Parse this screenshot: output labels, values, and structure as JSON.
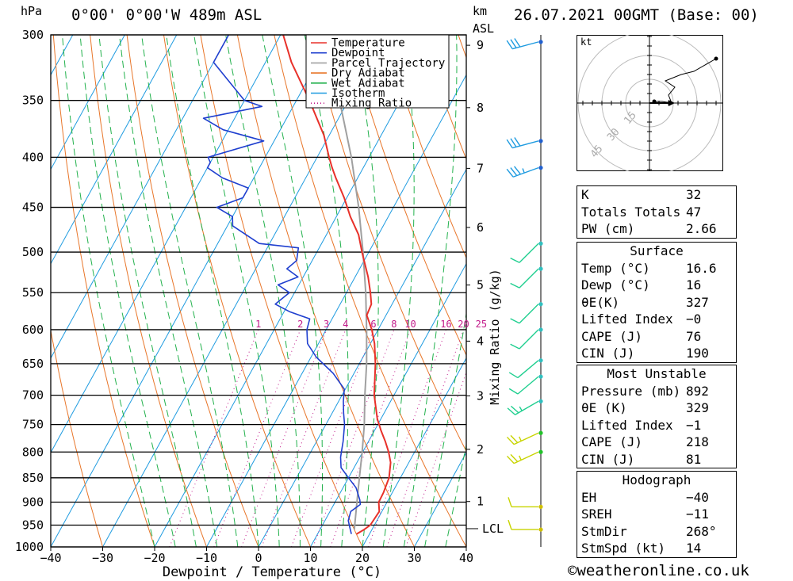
{
  "header": {
    "location": "0°00' 0°00'W 489m ASL",
    "datetime": "26.07.2021 00GMT (Base: 00)",
    "pressure_unit": "hPa",
    "height_unit_km": "km",
    "height_unit_asl": "ASL"
  },
  "chart_data": {
    "type": "skew-t",
    "xlabel": "Dewpoint / Temperature (°C)",
    "ylabel_left": "hPa",
    "ylabel_right": "Mixing Ratio (g/kg)",
    "xlim": [
      -40,
      40
    ],
    "ylim": [
      1000,
      300
    ],
    "pressure_ticks": [
      300,
      350,
      400,
      450,
      500,
      550,
      600,
      650,
      700,
      750,
      800,
      850,
      900,
      950,
      1000
    ],
    "temperature_ticks": [
      -40,
      -30,
      -20,
      -10,
      0,
      10,
      20,
      30,
      40
    ],
    "km_ticks": [
      1,
      2,
      3,
      4,
      5,
      6,
      7,
      8,
      9
    ],
    "lcl_label": "LCL",
    "lcl_pressure": 958,
    "mixing_ratio_labels": [
      1,
      2,
      3,
      4,
      6,
      8,
      10,
      16,
      20,
      25
    ],
    "legend": [
      "Temperature",
      "Dewpoint",
      "Parcel Trajectory",
      "Dry Adiabat",
      "Wet Adiabat",
      "Isotherm",
      "Mixing Ratio"
    ],
    "colors": {
      "temperature": "#e8312a",
      "dewpoint": "#1f3fcf",
      "parcel": "#a0a0a0",
      "dry_adiabat": "#e8762a",
      "wet_adiabat": "#22b14c",
      "isotherm": "#1e9be0",
      "mixing_ratio": "#c21a8a"
    },
    "temperature_profile": [
      [
        970,
        17.5
      ],
      [
        960,
        18.5
      ],
      [
        950,
        19.2
      ],
      [
        920,
        19.5
      ],
      [
        900,
        18.4
      ],
      [
        880,
        18.3
      ],
      [
        850,
        17.8
      ],
      [
        820,
        16.5
      ],
      [
        800,
        15.0
      ],
      [
        780,
        13.2
      ],
      [
        760,
        11.2
      ],
      [
        740,
        9.3
      ],
      [
        700,
        6.2
      ],
      [
        650,
        3.1
      ],
      [
        620,
        0.8
      ],
      [
        600,
        -1.2
      ],
      [
        580,
        -3.7
      ],
      [
        565,
        -4.0
      ],
      [
        550,
        -5.4
      ],
      [
        530,
        -7.5
      ],
      [
        500,
        -11.3
      ],
      [
        480,
        -13.8
      ],
      [
        460,
        -17.3
      ],
      [
        440,
        -20.5
      ],
      [
        420,
        -24.2
      ],
      [
        410,
        -26.0
      ],
      [
        400,
        -27.7
      ],
      [
        380,
        -31.0
      ],
      [
        350,
        -37.5
      ],
      [
        320,
        -45.0
      ],
      [
        300,
        -49.5
      ]
    ],
    "dewpoint_profile": [
      [
        970,
        16.5
      ],
      [
        955,
        15.5
      ],
      [
        940,
        14.5
      ],
      [
        920,
        14.0
      ],
      [
        905,
        15.1
      ],
      [
        895,
        14.5
      ],
      [
        870,
        12.5
      ],
      [
        850,
        10.0
      ],
      [
        830,
        7.5
      ],
      [
        810,
        6.3
      ],
      [
        800,
        5.9
      ],
      [
        780,
        5.1
      ],
      [
        750,
        3.6
      ],
      [
        730,
        2.2
      ],
      [
        710,
        0.9
      ],
      [
        690,
        -0.2
      ],
      [
        665,
        -4.0
      ],
      [
        640,
        -9.0
      ],
      [
        620,
        -12.1
      ],
      [
        600,
        -13.7
      ],
      [
        585,
        -14.3
      ],
      [
        575,
        -19.0
      ],
      [
        565,
        -22.5
      ],
      [
        550,
        -21.0
      ],
      [
        540,
        -24.0
      ],
      [
        530,
        -21.0
      ],
      [
        520,
        -24.0
      ],
      [
        510,
        -23.0
      ],
      [
        495,
        -24.0
      ],
      [
        490,
        -32.0
      ],
      [
        470,
        -39.0
      ],
      [
        460,
        -40.0
      ],
      [
        450,
        -44.0
      ],
      [
        440,
        -40.0
      ],
      [
        430,
        -40.0
      ],
      [
        420,
        -46.0
      ],
      [
        410,
        -50.0
      ],
      [
        405,
        -50.0
      ],
      [
        400,
        -51.0
      ],
      [
        385,
        -42.0
      ],
      [
        375,
        -51.0
      ],
      [
        365,
        -56.0
      ],
      [
        355,
        -46.0
      ],
      [
        350,
        -50.0
      ],
      [
        320,
        -60.0
      ],
      [
        300,
        -60.0
      ]
    ],
    "parcel_profile": [
      [
        960,
        16.6
      ],
      [
        900,
        14.2
      ],
      [
        850,
        12.1
      ],
      [
        800,
        9.9
      ],
      [
        750,
        7.4
      ],
      [
        700,
        4.4
      ],
      [
        650,
        1.4
      ],
      [
        600,
        -2.2
      ],
      [
        550,
        -6.3
      ],
      [
        500,
        -11.1
      ],
      [
        450,
        -16.7
      ],
      [
        400,
        -23.4
      ],
      [
        350,
        -31.7
      ],
      [
        300,
        -42.0
      ]
    ],
    "wind_profile": [
      [
        960,
        270,
        10
      ],
      [
        910,
        270,
        10
      ],
      [
        800,
        245,
        15
      ],
      [
        765,
        245,
        15
      ],
      [
        710,
        240,
        15
      ],
      [
        670,
        230,
        10
      ],
      [
        645,
        230,
        10
      ],
      [
        600,
        225,
        10
      ],
      [
        565,
        225,
        10
      ],
      [
        520,
        225,
        10
      ],
      [
        490,
        225,
        10
      ],
      [
        410,
        250,
        25
      ],
      [
        385,
        255,
        30
      ],
      [
        305,
        255,
        30
      ]
    ],
    "hodograph": {
      "unit": "kt",
      "ring_labels": [
        15,
        30,
        45
      ],
      "path": [
        [
          3,
          1
        ],
        [
          8,
          1
        ],
        [
          14,
          0
        ],
        [
          12,
          5
        ],
        [
          16,
          10
        ],
        [
          10,
          14
        ],
        [
          20,
          18
        ],
        [
          28,
          20
        ],
        [
          42,
          28
        ]
      ],
      "storm_motion": [
        14,
        0
      ],
      "storm_label": "14"
    }
  },
  "indices": {
    "rows": [
      {
        "label": "K",
        "value": "32"
      },
      {
        "label": "Totals Totals",
        "value": "47"
      },
      {
        "label": "PW (cm)",
        "value": "2.66"
      }
    ]
  },
  "surface": {
    "title": "Surface",
    "rows": [
      {
        "label": "Temp (°C)",
        "value": "16.6"
      },
      {
        "label": "Dewp (°C)",
        "value": "16"
      },
      {
        "label": "θE(K)",
        "value": "327"
      },
      {
        "label": "Lifted Index",
        "value": "−0"
      },
      {
        "label": "CAPE (J)",
        "value": "76"
      },
      {
        "label": "CIN (J)",
        "value": "190"
      }
    ]
  },
  "most_unstable": {
    "title": "Most Unstable",
    "rows": [
      {
        "label": "Pressure (mb)",
        "value": "892"
      },
      {
        "label": "θE (K)",
        "value": "329"
      },
      {
        "label": "Lifted Index",
        "value": "−1"
      },
      {
        "label": "CAPE (J)",
        "value": "218"
      },
      {
        "label": "CIN (J)",
        "value": "81"
      }
    ]
  },
  "hodograph_table": {
    "title": "Hodograph",
    "rows": [
      {
        "label": "EH",
        "value": "−40"
      },
      {
        "label": "SREH",
        "value": "−11"
      },
      {
        "label": "StmDir",
        "value": "268°"
      },
      {
        "label": "StmSpd (kt)",
        "value": "14"
      }
    ]
  },
  "credit": "©weatheronline.co.uk"
}
